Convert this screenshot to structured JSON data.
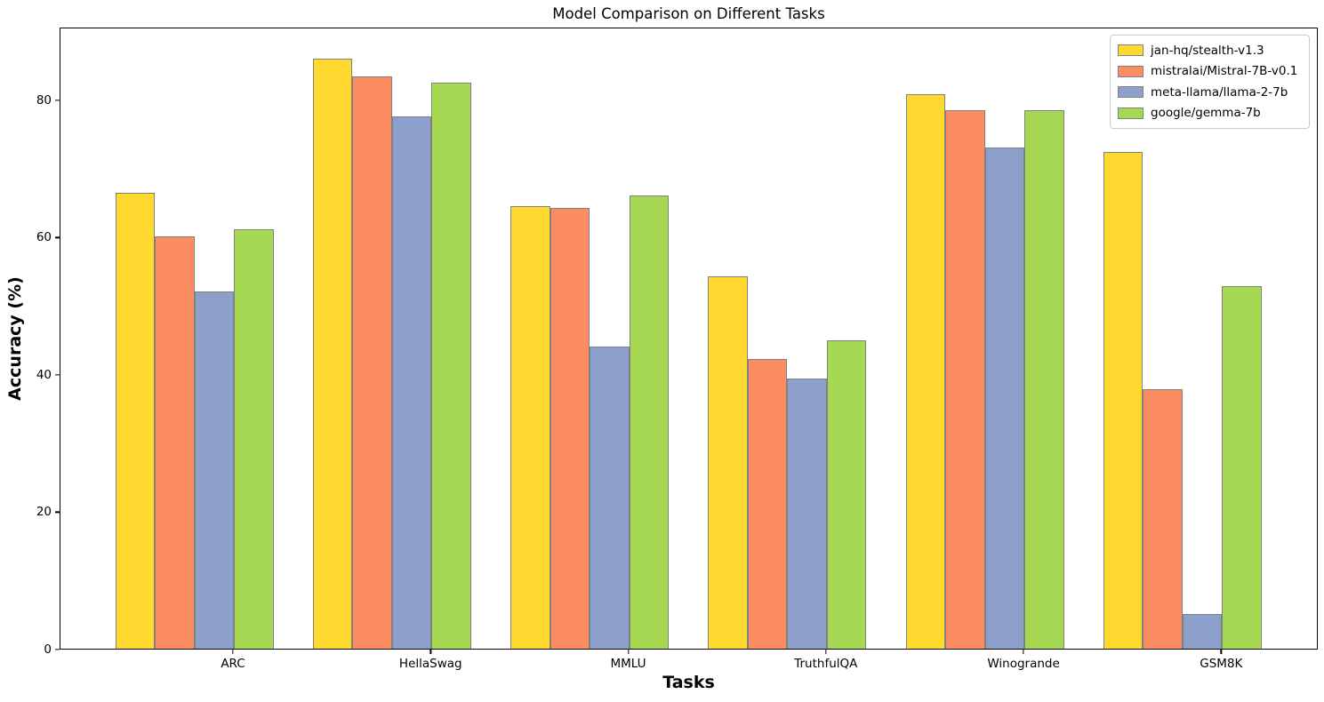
{
  "figure": {
    "title": "Model Comparison on Different Tasks",
    "xlabel": "Tasks",
    "ylabel": "Accuracy (%)",
    "background": "#ffffff"
  },
  "chart_data": {
    "type": "bar",
    "title": "Model Comparison on Different Tasks",
    "xlabel": "Tasks",
    "ylabel": "Accuracy (%)",
    "categories": [
      "ARC",
      "HellaSwag",
      "MMLU",
      "TruthfulQA",
      "Winogrande",
      "GSM8K"
    ],
    "series": [
      {
        "name": "jan-hq/stealth-v1.3",
        "color": "#FFD92F",
        "values": [
          66.4,
          86.0,
          64.4,
          54.2,
          80.8,
          72.3
        ]
      },
      {
        "name": "mistralai/Mistral-7B-v0.1",
        "color": "#FC8D62",
        "values": [
          60.0,
          83.3,
          64.2,
          42.2,
          78.4,
          37.8
        ]
      },
      {
        "name": "meta-llama/llama-2-7b",
        "color": "#8DA0CB",
        "values": [
          52.0,
          77.5,
          44.0,
          39.4,
          73.0,
          5.0
        ]
      },
      {
        "name": "google/gemma-7b",
        "color": "#A6D854",
        "values": [
          61.1,
          82.5,
          66.0,
          44.9,
          78.5,
          52.8
        ]
      }
    ],
    "y_ticks": [
      0,
      20,
      40,
      60,
      80
    ],
    "ylim": [
      0,
      90.6
    ],
    "bar_edge_color": "#808080",
    "axis_color": "#000000",
    "grid": false,
    "legend_position": "upper right"
  }
}
